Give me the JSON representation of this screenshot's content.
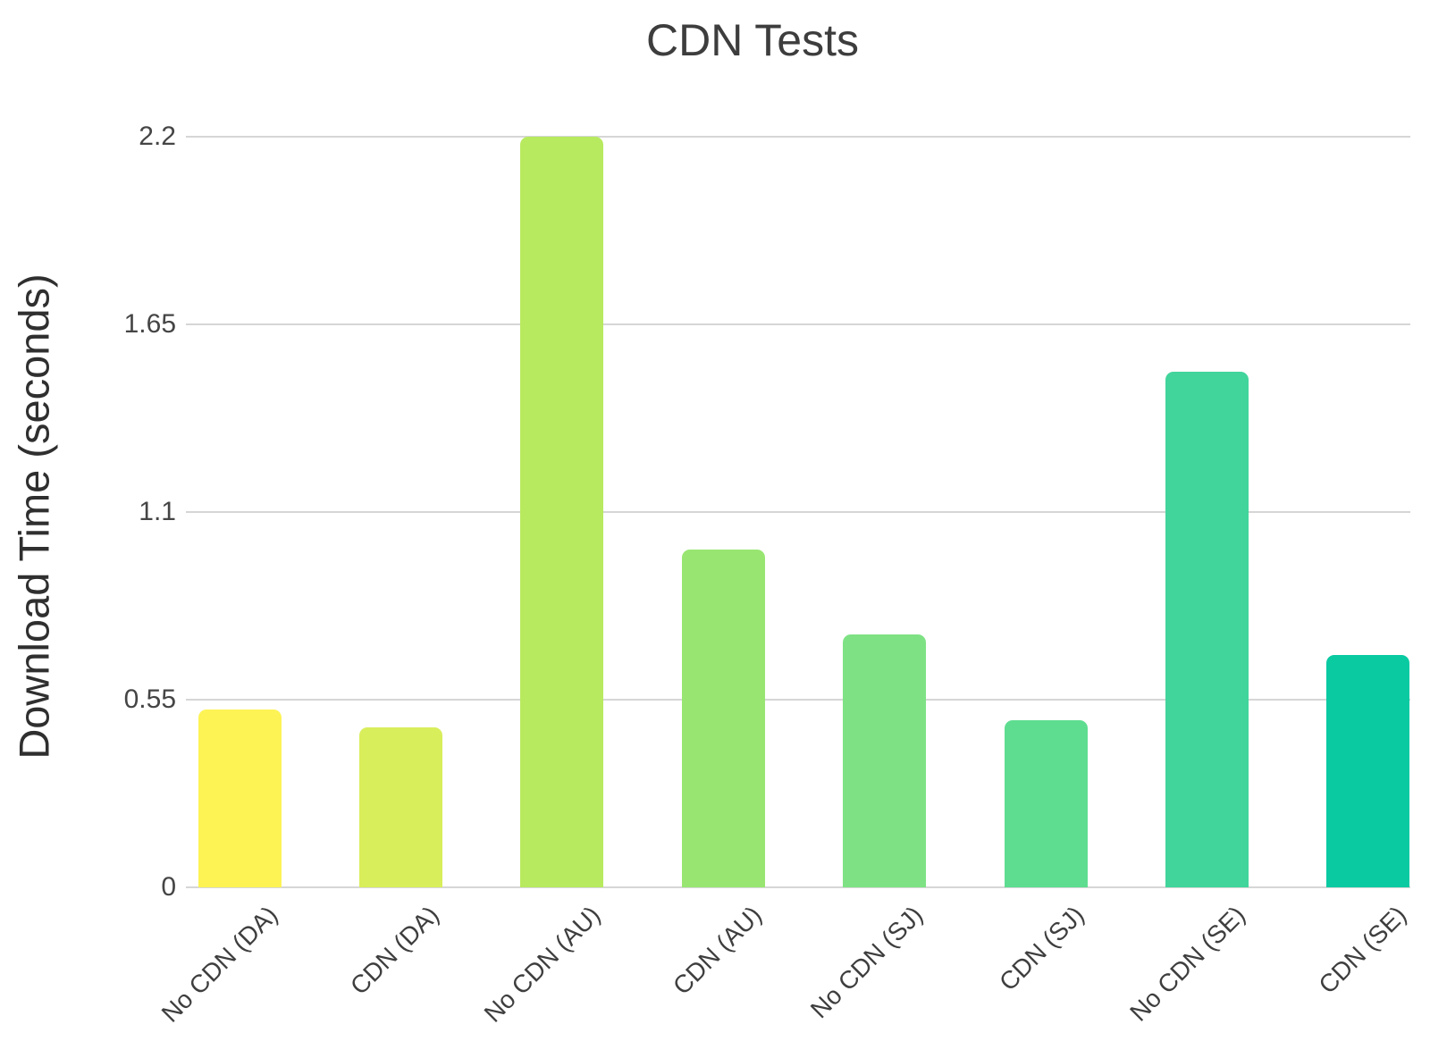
{
  "chart_data": {
    "type": "bar",
    "title": "CDN Tests",
    "xlabel": "",
    "ylabel": "Download Time (seconds)",
    "categories": [
      "No CDN (DA)",
      "CDN (DA)",
      "No CDN (AU)",
      "CDN (AU)",
      "No CDN (SJ)",
      "CDN (SJ)",
      "No CDN (SE)",
      "CDN (SE)"
    ],
    "values": [
      0.52,
      0.47,
      2.2,
      0.99,
      0.74,
      0.49,
      1.51,
      0.68
    ],
    "bar_colors": [
      "#fdf355",
      "#d9ee5b",
      "#b7ea5e",
      "#98e671",
      "#7ee284",
      "#5edd90",
      "#41d49b",
      "#0acaa2"
    ],
    "yticks": [
      0,
      0.55,
      1.1,
      1.65,
      2.2
    ],
    "ytick_labels": [
      "0",
      "0.55",
      "1.1",
      "1.65",
      "2.2"
    ],
    "ylim": [
      0,
      2.2
    ],
    "grid": true,
    "legend": "none",
    "colors": {
      "gridline": "#d6d6d6",
      "title_text": "#3d3d3d",
      "axis_title_text": "#2f2f2f",
      "tick_text": "#454545",
      "background": "#ffffff"
    }
  }
}
